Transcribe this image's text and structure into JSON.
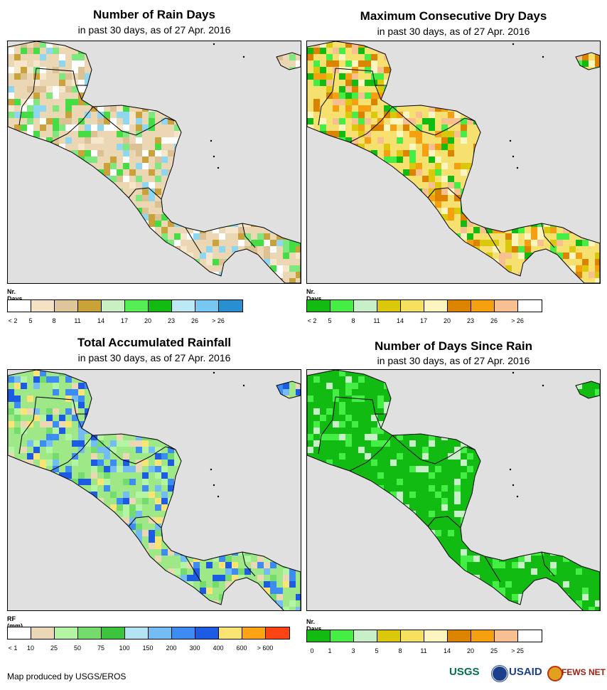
{
  "panels": [
    {
      "title": "Number of Rain Days",
      "subtitle": "in past 30 days, as of 27 Apr. 2016",
      "legend_label": "Nr. Days",
      "legend_colors": [
        "#ffffff",
        "#f5e1c4",
        "#dfc69a",
        "#c9a23a",
        "#c8f0c0",
        "#55ee55",
        "#11bb11",
        "#bde8f5",
        "#77c8f0",
        "#2a8fd0"
      ],
      "legend_ticks": [
        "< 2",
        "5",
        "8",
        "11",
        "14",
        "17",
        "20",
        "23",
        "26",
        "> 26"
      ],
      "land_color": "#ecd7b4",
      "accent_colors": [
        "#ffffff",
        "#f6e6cc",
        "#dcc194",
        "#c9a23a",
        "#7ee87e",
        "#44dd44",
        "#8fd6f0"
      ]
    },
    {
      "title": "Maximum Consecutive Dry Days",
      "subtitle": "in past 30 days, as of 27 Apr. 2016",
      "legend_label": "Nr. Days",
      "legend_colors": [
        "#11bb11",
        "#44ee44",
        "#c8f0c8",
        "#dcc80a",
        "#f5e060",
        "#fbf5c0",
        "#dc8400",
        "#f5a010",
        "#f8c090",
        "#ffffff"
      ],
      "legend_ticks": [
        "< 2",
        "5",
        "8",
        "11",
        "14",
        "17",
        "20",
        "23",
        "26",
        "> 26"
      ],
      "land_color": "#f5e070",
      "accent_colors": [
        "#dc8400",
        "#f5a010",
        "#f8c090",
        "#fbf5c0",
        "#44ee44",
        "#dcc80a",
        "#11bb11"
      ]
    },
    {
      "title": "Total Accumulated Rainfall",
      "subtitle": "in past 30 days, as of 27 Apr. 2016",
      "legend_label": "RF (mm)",
      "legend_colors": [
        "#ffffff",
        "#ecd7b4",
        "#b4f5a4",
        "#74dc6c",
        "#3cc43c",
        "#b4e4f4",
        "#74bcf4",
        "#3c8cf4",
        "#1c5ce4",
        "#fce474",
        "#fca414",
        "#fc4414"
      ],
      "legend_ticks": [
        "< 1",
        "10",
        "25",
        "50",
        "75",
        "100",
        "150",
        "200",
        "300",
        "400",
        "600",
        "> 600"
      ],
      "land_color": "#9ee888",
      "accent_colors": [
        "#74dc6c",
        "#b4f5a4",
        "#ecd7b4",
        "#74bcf4",
        "#3c8cf4",
        "#1c5ce4",
        "#fce474"
      ]
    },
    {
      "title": "Number of Days Since Rain",
      "subtitle": "in past 30 days, as of 27 Apr. 2016",
      "legend_label": "Nr. Days",
      "legend_colors": [
        "#11bb11",
        "#44ee44",
        "#c8f0c8",
        "#dcc80a",
        "#f5e060",
        "#fbf5c0",
        "#dc8400",
        "#f5a010",
        "#f8c090",
        "#ffffff"
      ],
      "legend_ticks": [
        "0",
        "1",
        "3",
        "5",
        "8",
        "11",
        "14",
        "20",
        "25",
        "> 25"
      ],
      "land_color": "#11bb11",
      "accent_colors": [
        "#11bb11",
        "#44ee44",
        "#c8f0c8",
        "#11bb11",
        "#11bb11",
        "#44ee44",
        "#11bb11"
      ]
    }
  ],
  "footer": {
    "credit": "Map produced by USGS/EROS"
  },
  "logos": {
    "usgs": "USGS",
    "usaid": "USAID",
    "fews": "FEWS NET"
  },
  "colors": {
    "ocean": "#e0e0e0",
    "border": "#000000"
  }
}
